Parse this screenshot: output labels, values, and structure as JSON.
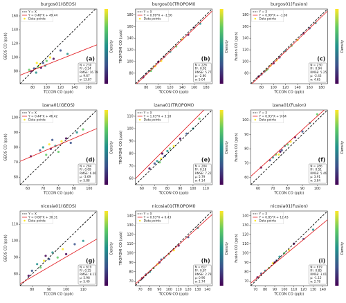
{
  "chart_data": [
    {
      "type": "scatter",
      "title": "burgos01(GEOS)",
      "xlabel": "TCCON CO (ppb)",
      "ylabel": "GEOS CO (ppb)",
      "panel_label": "(a)",
      "x": [
        78,
        82,
        85,
        88,
        90,
        92,
        95,
        98,
        100,
        105,
        110,
        120,
        130,
        75,
        86
      ],
      "y": [
        80,
        84,
        78,
        86,
        90,
        85,
        92,
        88,
        95,
        100,
        98,
        110,
        105,
        82,
        92
      ],
      "xlim": [
        62,
        172
      ],
      "ylim": [
        62,
        170
      ],
      "xticks": [
        80,
        100,
        120,
        140,
        160
      ],
      "yticks": [
        80,
        100,
        120,
        140,
        160
      ],
      "identity_label": "Y = X",
      "fit": {
        "label": "Y = 0.40*X + 49.44",
        "slope": 0.4,
        "intercept": 49.44,
        "color": "#e3262b"
      },
      "points_label": "Data points",
      "stats": [
        "N = 230",
        "R²: 0.24",
        "RMSE: 16.79",
        "μ: 9.67",
        "σ: 13.87"
      ],
      "colorbar_label": "Density",
      "palette": [
        "#440154",
        "#3b528b",
        "#21918c",
        "#5ec962",
        "#fde725"
      ]
    },
    {
      "type": "scatter",
      "title": "burgos01(TROPOMI)",
      "xlabel": "TCCON CO (ppb)",
      "ylabel": "TROPOMI CO (ppb)",
      "panel_label": "(b)",
      "x": [
        75,
        80,
        85,
        90,
        95,
        100,
        110,
        120,
        130,
        140,
        150,
        160,
        170,
        88,
        105
      ],
      "y": [
        73,
        79,
        84,
        88,
        92,
        99,
        108,
        117,
        126,
        138,
        146,
        158,
        165,
        84,
        101
      ],
      "xlim": [
        62,
        190
      ],
      "ylim": [
        62,
        190
      ],
      "xticks": [
        80,
        100,
        120,
        140,
        160,
        180
      ],
      "yticks": [
        80,
        100,
        120,
        140,
        160,
        180
      ],
      "identity_label": "Y = X",
      "fit": {
        "label": "Y = 0.99*X + -1.56",
        "slope": 0.99,
        "intercept": -1.56,
        "color": "#e3262b"
      },
      "points_label": "Data points",
      "stats": [
        "N = 226",
        "R²: 0.92",
        "RMSE: 5.77",
        "μ: -2.80",
        "σ: 5.04"
      ],
      "colorbar_label": "Density",
      "palette": [
        "#440154",
        "#3b528b",
        "#21918c",
        "#5ec962",
        "#fde725"
      ]
    },
    {
      "type": "scatter",
      "title": "burgos01(Fusion)",
      "xlabel": "TCCON CO (ppb)",
      "ylabel": "Fusion CO (ppb)",
      "panel_label": "(c)",
      "x": [
        75,
        80,
        85,
        90,
        95,
        100,
        110,
        120,
        130,
        140,
        150,
        160,
        170,
        88,
        105
      ],
      "y": [
        74,
        78,
        83,
        87,
        93,
        97,
        107,
        118,
        127,
        137,
        148,
        157,
        166,
        85,
        102
      ],
      "xlim": [
        62,
        190
      ],
      "ylim": [
        62,
        190
      ],
      "xticks": [
        80,
        100,
        120,
        140,
        160,
        180
      ],
      "yticks": [
        80,
        100,
        120,
        140,
        160,
        180
      ],
      "identity_label": "Y = X",
      "fit": {
        "label": "Y = 0.99*X + -1.60",
        "slope": 0.99,
        "intercept": -1.6,
        "color": "#e3262b"
      },
      "points_label": "Data points",
      "stats": [
        "N = 230",
        "R²: 0.94",
        "RMSE: 5.25",
        "μ: -2.43",
        "σ: 4.65"
      ],
      "colorbar_label": "Density",
      "palette": [
        "#440154",
        "#3b528b",
        "#21918c",
        "#5ec962",
        "#fde725"
      ]
    },
    {
      "type": "scatter",
      "title": "izana01(GEOS)",
      "xlabel": "TCCON CO (ppb)",
      "ylabel": "GEOS CO (ppb)",
      "panel_label": "(d)",
      "x": [
        62,
        68,
        70,
        72,
        74,
        75,
        76,
        78,
        80,
        82,
        85,
        88,
        92,
        96
      ],
      "y": [
        74,
        78,
        80,
        75,
        82,
        79,
        85,
        81,
        77,
        84,
        86,
        83,
        90,
        92
      ],
      "xlim": [
        55,
        105
      ],
      "ylim": [
        55,
        105
      ],
      "xticks": [
        60,
        70,
        80,
        90,
        100
      ],
      "yticks": [
        60,
        70,
        80,
        90,
        100
      ],
      "identity_label": "Y = X",
      "fit": {
        "label": "Y = 0.44*X + 46.42",
        "slope": 0.44,
        "intercept": 46.42,
        "color": "#e3262b"
      },
      "points_label": "Data points",
      "stats": [
        "N = 284",
        "R²: 0.09",
        "RMSE: 6.46",
        "μ: -3.69",
        "σ: 5.88"
      ],
      "colorbar_label": "Density",
      "palette": [
        "#440154",
        "#3b528b",
        "#21918c",
        "#5ec962",
        "#fde725"
      ]
    },
    {
      "type": "scatter",
      "title": "izana01(TROPOMI)",
      "xlabel": "TCCON CO (ppb)",
      "ylabel": "TROPOMI CO (ppb)",
      "panel_label": "(e)",
      "x": [
        66,
        70,
        72,
        74,
        75,
        76,
        78,
        80,
        82,
        85,
        90,
        95,
        100,
        105
      ],
      "y": [
        68,
        72,
        74,
        73,
        76,
        80,
        78,
        82,
        84,
        86,
        92,
        96,
        100,
        108
      ],
      "xlim": [
        55,
        115
      ],
      "ylim": [
        55,
        115
      ],
      "xticks": [
        60,
        70,
        80,
        90,
        100,
        110
      ],
      "yticks": [
        60,
        70,
        80,
        90,
        100,
        110
      ],
      "identity_label": "Y = X",
      "fit": {
        "label": "Y = 1.03*X + 3.18",
        "slope": 1.03,
        "intercept": 3.18,
        "color": "#e3262b"
      },
      "points_label": "Data points",
      "stats": [
        "N = 204",
        "R²: 0.18",
        "RMSE: 7.22",
        "μ: 5.79",
        "σ: 4.14"
      ],
      "colorbar_label": "Density",
      "palette": [
        "#440154",
        "#3b528b",
        "#21918c",
        "#5ec962",
        "#fde725"
      ]
    },
    {
      "type": "scatter",
      "title": "izana01(Fusion)",
      "xlabel": "TCCON CO (ppb)",
      "ylabel": "Fusion CO (ppb)",
      "panel_label": "(f)",
      "x": [
        62,
        68,
        70,
        72,
        74,
        75,
        76,
        78,
        80,
        82,
        85,
        90,
        95,
        100
      ],
      "y": [
        67,
        72,
        74,
        76,
        76,
        78,
        79,
        82,
        83,
        85,
        88,
        92,
        98,
        104
      ],
      "xlim": [
        55,
        107
      ],
      "ylim": [
        55,
        107
      ],
      "xticks": [
        60,
        70,
        80,
        90,
        100
      ],
      "yticks": [
        60,
        70,
        80,
        90,
        100
      ],
      "identity_label": "Y = X",
      "fit": {
        "label": "Y = 0.93*X + 9.64",
        "slope": 0.93,
        "intercept": 9.64,
        "color": "#e3262b"
      },
      "points_label": "Data points",
      "stats": [
        "N = 286",
        "R²: 0.51",
        "RMSE: 5.46",
        "μ: 3.91",
        "σ: 3.84"
      ],
      "colorbar_label": "Density",
      "palette": [
        "#440154",
        "#3b528b",
        "#21918c",
        "#5ec962",
        "#fde725"
      ]
    },
    {
      "type": "scatter",
      "title": "nicosia01(GEOS)",
      "xlabel": "TCCON CO (ppb)",
      "ylabel": "GEOS CO (ppb)",
      "panel_label": "(g)",
      "x": [
        78,
        80,
        83,
        85,
        87,
        88,
        90,
        92,
        95,
        98,
        100,
        105,
        110
      ],
      "y": [
        79,
        82,
        86,
        84,
        88,
        91,
        89,
        93,
        90,
        95,
        92,
        98,
        100
      ],
      "xlim": [
        73,
        118
      ],
      "ylim": [
        73,
        118
      ],
      "xticks": [
        80,
        90,
        100,
        110
      ],
      "yticks": [
        80,
        90,
        100,
        110
      ],
      "identity_label": "Y = X",
      "fit": {
        "label": "Y = 0.60*X + 30.31",
        "slope": 0.6,
        "intercept": 30.31,
        "color": "#e3262b"
      },
      "points_label": "Data points",
      "stats": [
        "N = 619",
        "R²: 0.25",
        "RMSE: 8.11",
        "μ: 5.98",
        "σ: 5.49"
      ],
      "colorbar_label": "Density",
      "palette": [
        "#440154",
        "#3b528b",
        "#21918c",
        "#5ec962",
        "#fde725"
      ]
    },
    {
      "type": "scatter",
      "title": "nicosia01(TROPOMI)",
      "xlabel": "TCCON CO (ppb)",
      "ylabel": "TROPOMI CO (ppb)",
      "panel_label": "(h)",
      "x": [
        72,
        76,
        80,
        84,
        88,
        90,
        92,
        95,
        100,
        105,
        110,
        120,
        130
      ],
      "y": [
        73,
        77,
        80,
        84,
        88,
        90,
        93,
        95,
        99,
        103,
        108,
        117,
        127
      ],
      "xlim": [
        65,
        145
      ],
      "ylim": [
        65,
        145
      ],
      "xticks": [
        70,
        80,
        90,
        100,
        110,
        120,
        130,
        140
      ],
      "yticks": [
        70,
        80,
        90,
        100,
        110,
        120,
        130,
        140
      ],
      "identity_label": "Y = X",
      "fit": {
        "label": "Y = 0.93*X + 6.43",
        "slope": 0.93,
        "intercept": 6.43,
        "color": "#e3262b"
      },
      "points_label": "Data points",
      "stats": [
        "N = 617",
        "R²: 0.87",
        "RMSE: 2.79",
        "μ: 0.96",
        "σ: 2.74"
      ],
      "colorbar_label": "Density",
      "palette": [
        "#440154",
        "#3b528b",
        "#21918c",
        "#5ec962",
        "#fde725"
      ]
    },
    {
      "type": "scatter",
      "title": "nicosia01(Fusion)",
      "xlabel": "TCCON CO (ppb)",
      "ylabel": "Fusion CO (ppb)",
      "panel_label": "(i)",
      "x": [
        72,
        76,
        80,
        84,
        88,
        90,
        92,
        95,
        100,
        105,
        110,
        120,
        130
      ],
      "y": [
        74,
        78,
        81,
        84,
        89,
        90,
        92,
        96,
        100,
        103,
        110,
        115,
        125
      ],
      "xlim": [
        65,
        145
      ],
      "ylim": [
        65,
        145
      ],
      "xticks": [
        70,
        80,
        90,
        100,
        110,
        120,
        130,
        140
      ],
      "yticks": [
        70,
        80,
        90,
        100,
        110,
        120,
        130,
        140
      ],
      "identity_label": "Y = X",
      "fit": {
        "label": "Y = 0.85*X + 12.43",
        "slope": 0.85,
        "intercept": 12.43,
        "color": "#e3262b"
      },
      "points_label": "Data points",
      "stats": [
        "N = 619",
        "R²: 0.85",
        "RMSE: 3.01",
        "μ: -1.15",
        "σ: 2.78"
      ],
      "colorbar_label": "Density",
      "palette": [
        "#440154",
        "#3b528b",
        "#21918c",
        "#5ec962",
        "#fde725"
      ]
    }
  ]
}
